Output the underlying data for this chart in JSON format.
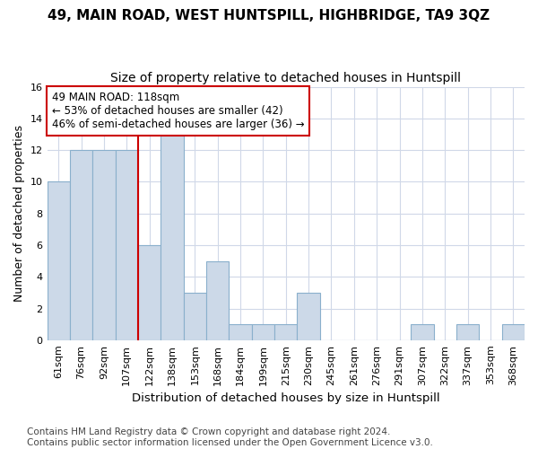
{
  "title1": "49, MAIN ROAD, WEST HUNTSPILL, HIGHBRIDGE, TA9 3QZ",
  "title2": "Size of property relative to detached houses in Huntspill",
  "xlabel": "Distribution of detached houses by size in Huntspill",
  "ylabel": "Number of detached properties",
  "categories": [
    "61sqm",
    "76sqm",
    "92sqm",
    "107sqm",
    "122sqm",
    "138sqm",
    "153sqm",
    "168sqm",
    "184sqm",
    "199sqm",
    "215sqm",
    "230sqm",
    "245sqm",
    "261sqm",
    "276sqm",
    "291sqm",
    "307sqm",
    "322sqm",
    "337sqm",
    "353sqm",
    "368sqm"
  ],
  "values": [
    10,
    12,
    12,
    12,
    6,
    13,
    3,
    5,
    1,
    1,
    1,
    3,
    0,
    0,
    0,
    0,
    1,
    0,
    1,
    0,
    1
  ],
  "bar_color": "#ccd9e8",
  "bar_edge_color": "#8ab0cc",
  "vline_x": 3.5,
  "annotation_line1": "49 MAIN ROAD: 118sqm",
  "annotation_line2": "← 53% of detached houses are smaller (42)",
  "annotation_line3": "46% of semi-detached houses are larger (36) →",
  "annotation_box_facecolor": "#ffffff",
  "annotation_box_edgecolor": "#cc0000",
  "vline_color": "#cc0000",
  "ylim": [
    0,
    16
  ],
  "yticks": [
    0,
    2,
    4,
    6,
    8,
    10,
    12,
    14,
    16
  ],
  "footer_line1": "Contains HM Land Registry data © Crown copyright and database right 2024.",
  "footer_line2": "Contains public sector information licensed under the Open Government Licence v3.0.",
  "bg_color": "#ffffff",
  "plot_bg_color": "#ffffff",
  "grid_color": "#d0d8e8",
  "title1_fontsize": 11,
  "title2_fontsize": 10,
  "xlabel_fontsize": 9.5,
  "ylabel_fontsize": 9,
  "tick_fontsize": 8,
  "annotation_fontsize": 8.5,
  "footer_fontsize": 7.5
}
